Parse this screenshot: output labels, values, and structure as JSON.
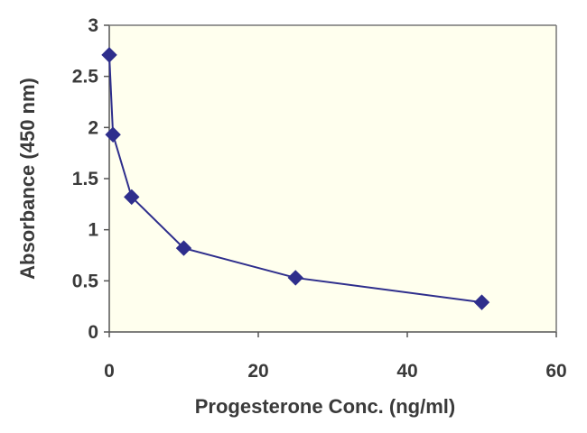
{
  "chart_data": {
    "type": "line",
    "xlabel": "Progesterone Conc. (ng/ml)",
    "ylabel": "Absorbance (450 nm)",
    "xlim": [
      0,
      60
    ],
    "ylim": [
      0,
      3
    ],
    "xticks": [
      0,
      20,
      40,
      60
    ],
    "yticks": [
      0,
      0.5,
      1,
      1.5,
      2,
      2.5,
      3
    ],
    "xtick_labels": [
      "0",
      "20",
      "40",
      "60"
    ],
    "ytick_labels": [
      "0",
      "0.5",
      "1",
      "1.5",
      "2",
      "2.5",
      "3"
    ],
    "grid": false,
    "plot_background": "#FFFFEE",
    "series": [
      {
        "color": "#2E2E8C",
        "marker": "diamond",
        "x": [
          0,
          0.5,
          3,
          10,
          25,
          50
        ],
        "y": [
          2.71,
          1.93,
          1.32,
          0.82,
          0.53,
          0.29
        ]
      }
    ]
  }
}
